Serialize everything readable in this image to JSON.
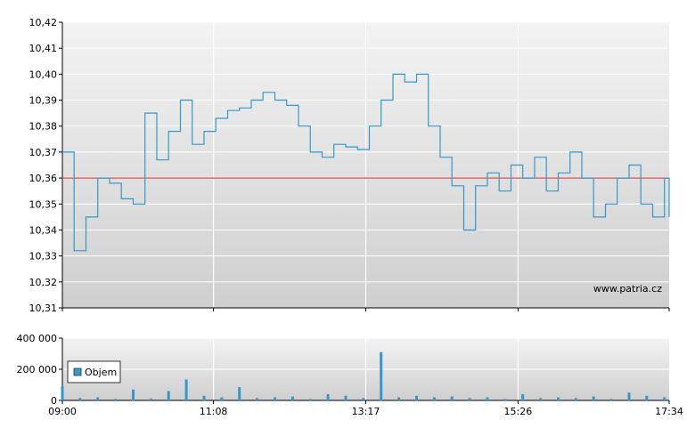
{
  "chart_data": [
    {
      "type": "line",
      "series": [
        {
          "x": [
            "09:00",
            "09:10",
            "09:20",
            "09:30",
            "09:40",
            "09:50",
            "10:00",
            "10:10",
            "10:20",
            "10:30",
            "10:40",
            "10:50",
            "11:00",
            "11:10",
            "11:20",
            "11:30",
            "11:40",
            "11:50",
            "12:00",
            "12:10",
            "12:20",
            "12:30",
            "12:40",
            "12:50",
            "13:00",
            "13:10",
            "13:20",
            "13:30",
            "13:40",
            "13:50",
            "14:00",
            "14:10",
            "14:20",
            "14:30",
            "14:40",
            "14:50",
            "15:00",
            "15:10",
            "15:20",
            "15:30",
            "15:40",
            "15:50",
            "16:00",
            "16:10",
            "16:20",
            "16:30",
            "16:40",
            "16:50",
            "17:00",
            "17:10",
            "17:20",
            "17:30",
            "17:34"
          ],
          "values": [
            10.37,
            10.332,
            10.345,
            10.36,
            10.358,
            10.352,
            10.35,
            10.385,
            10.367,
            10.378,
            10.39,
            10.373,
            10.378,
            10.383,
            10.386,
            10.387,
            10.39,
            10.393,
            10.39,
            10.388,
            10.38,
            10.37,
            10.368,
            10.373,
            10.372,
            10.371,
            10.38,
            10.39,
            10.4,
            10.397,
            10.4,
            10.38,
            10.368,
            10.357,
            10.34,
            10.357,
            10.362,
            10.355,
            10.365,
            10.36,
            10.368,
            10.355,
            10.362,
            10.37,
            10.36,
            10.345,
            10.35,
            10.36,
            10.365,
            10.35,
            10.345,
            10.36,
            10.345
          ]
        }
      ],
      "reference_line": 10.36,
      "ylim": [
        10.31,
        10.42
      ],
      "y_ticks": [
        "10,42",
        "10,41",
        "10,40",
        "10,39",
        "10,38",
        "10,37",
        "10,36",
        "10,35",
        "10,34",
        "10,33",
        "10,32",
        "10,31"
      ],
      "x_ticks": [
        "09:00",
        "11:08",
        "13:17",
        "15:26",
        "17:34"
      ],
      "annotation": "www.patria.cz",
      "colors": {
        "line": "#3399cc",
        "reference": "#e05050"
      }
    },
    {
      "type": "bar",
      "series": [
        {
          "name": "Objem",
          "x": [
            "09:00",
            "09:15",
            "09:30",
            "09:45",
            "10:00",
            "10:15",
            "10:30",
            "10:45",
            "11:00",
            "11:15",
            "11:30",
            "11:45",
            "12:00",
            "12:15",
            "12:30",
            "12:45",
            "13:00",
            "13:15",
            "13:30",
            "13:45",
            "14:00",
            "14:15",
            "14:30",
            "14:45",
            "15:00",
            "15:15",
            "15:30",
            "15:45",
            "16:00",
            "16:15",
            "16:30",
            "16:45",
            "17:00",
            "17:15",
            "17:30"
          ],
          "values": [
            90000,
            15000,
            20000,
            10000,
            70000,
            12000,
            60000,
            135000,
            30000,
            20000,
            85000,
            15000,
            20000,
            25000,
            10000,
            40000,
            30000,
            15000,
            310000,
            20000,
            30000,
            20000,
            25000,
            15000,
            20000,
            10000,
            40000,
            15000,
            20000,
            15000,
            25000,
            10000,
            50000,
            30000,
            20000
          ]
        }
      ],
      "ylim": [
        0,
        400000
      ],
      "y_ticks": [
        "400 000",
        "200 000",
        "0"
      ],
      "x_ticks": [
        "09:00",
        "11:08",
        "13:17",
        "15:26",
        "17:34"
      ],
      "legend": "top-left",
      "colors": {
        "bar": "#3399cc"
      }
    }
  ]
}
